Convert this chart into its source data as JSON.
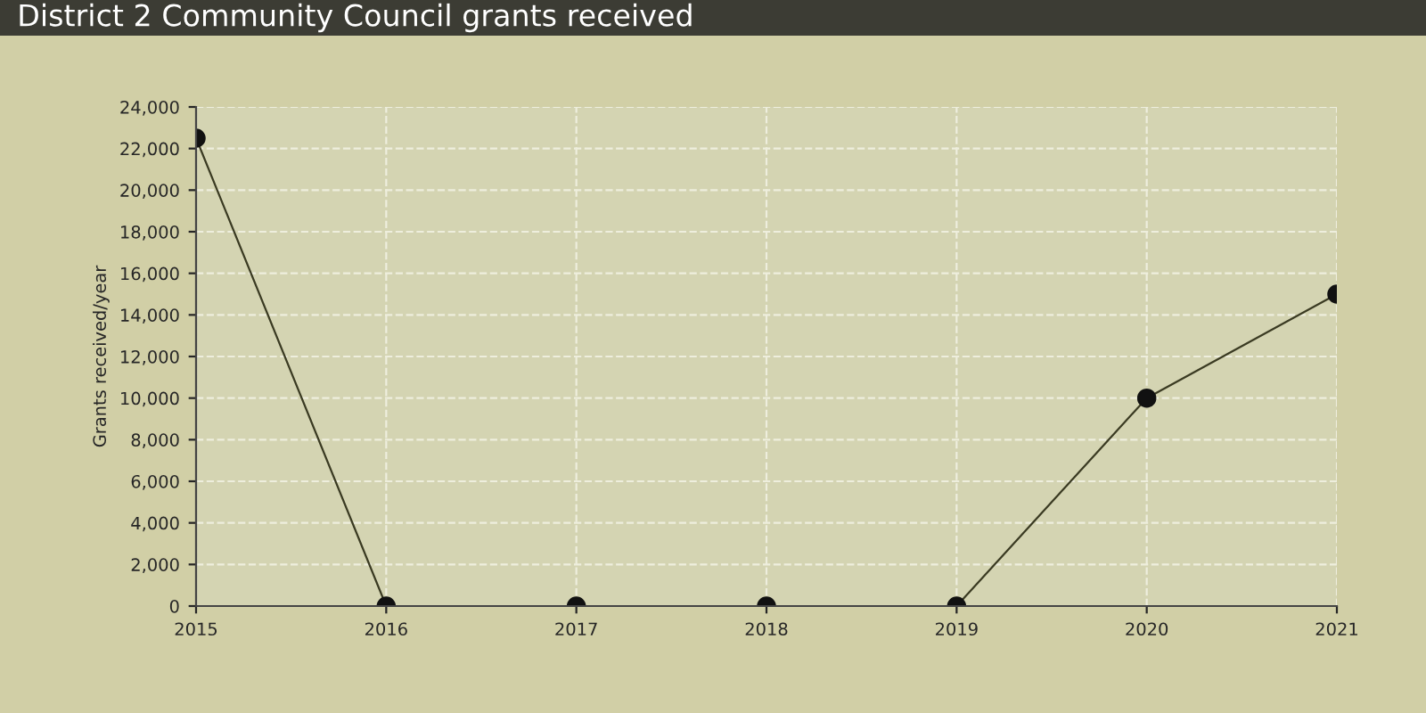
{
  "chart_data": {
    "type": "line",
    "title": "District 2 Community Council grants received",
    "ylabel": "Grants received/year",
    "x": [
      2015,
      2016,
      2017,
      2018,
      2019,
      2020,
      2021
    ],
    "series": [
      {
        "color": "#3a3a22",
        "values": [
          22500,
          0,
          0,
          0,
          0,
          10000,
          15000
        ]
      }
    ],
    "xlim": [
      2015,
      2021
    ],
    "xticks": [
      2015,
      2016,
      2017,
      2018,
      2019,
      2020,
      2021
    ],
    "ylim": [
      0,
      24000
    ],
    "yticks": [
      0,
      {
        "value": 2000,
        "label": "2,000"
      },
      {
        "value": 4000,
        "label": "4,000"
      },
      {
        "value": 6000,
        "label": "6,000"
      },
      {
        "value": 8000,
        "label": "8,000"
      },
      {
        "value": 10000,
        "label": "10,000"
      },
      {
        "value": 12000,
        "label": "12,000"
      },
      {
        "value": 14000,
        "label": "14,000"
      },
      {
        "value": 16000,
        "label": "16,000"
      },
      {
        "value": 18000,
        "label": "18,000"
      },
      {
        "value": 20000,
        "label": "20,000"
      },
      {
        "value": 22000,
        "label": "22,000"
      },
      {
        "value": 24000,
        "label": "24,000"
      }
    ],
    "grid": true,
    "marker": "circle",
    "line_style": "solid"
  }
}
